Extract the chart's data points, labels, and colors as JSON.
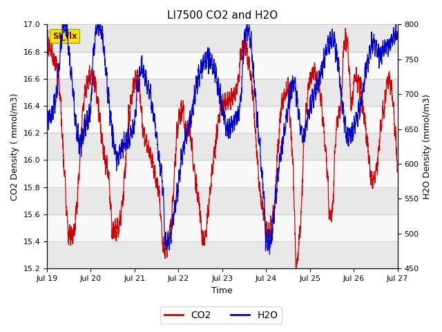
{
  "title": "LI7500 CO2 and H2O",
  "xlabel": "Time",
  "ylabel_left": "CO2 Density ( mmol/m3)",
  "ylabel_right": "H2O Density (mmol/m3)",
  "ylim_left": [
    15.2,
    17.0
  ],
  "ylim_right": [
    450,
    800
  ],
  "xtick_labels": [
    "Jul 19",
    "Jul 20",
    "Jul 21",
    "Jul 22",
    "Jul 23",
    "Jul 24",
    "Jul 25",
    "Jul 26",
    "Jul 27"
  ],
  "yticks_left": [
    15.2,
    15.4,
    15.6,
    15.8,
    16.0,
    16.2,
    16.4,
    16.6,
    16.8,
    17.0
  ],
  "yticks_right": [
    450,
    500,
    550,
    600,
    650,
    700,
    750,
    800
  ],
  "co2_color": "#cc0000",
  "h2o_color": "#0000cc",
  "bg_color": "#ffffff",
  "band_color_dark": "#e8e8e8",
  "band_color_light": "#f8f8f8",
  "grid_color": "#c8c8c8",
  "legend_label_co2": "CO2",
  "legend_label_h2o": "H2O",
  "watermark_text": "SI_flx",
  "watermark_bg": "#e8e800",
  "watermark_fg": "#880000"
}
